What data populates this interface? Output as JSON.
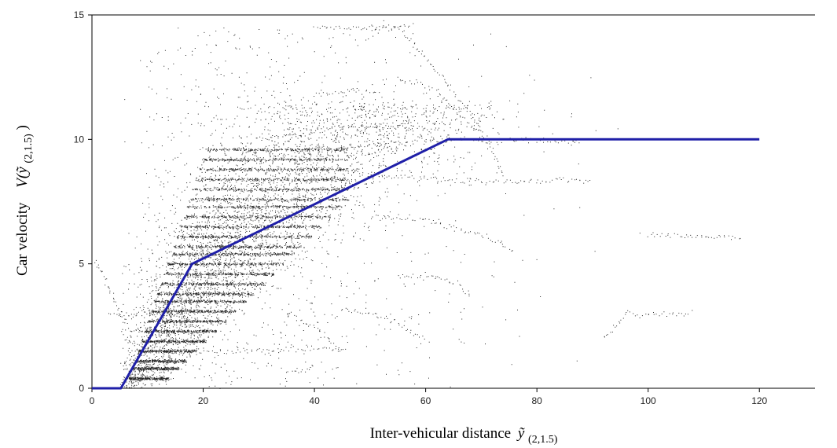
{
  "chart_data": {
    "type": "scatter",
    "xlabel": "Inter-vehicular distance ỹ(2,1.5)",
    "xlabel_text": "Inter-vehicular distance",
    "xlabel_symbol": "ỹ",
    "xlabel_subscript": "(2,1.5)",
    "ylabel": "Car velocity V(ỹ(2,1.5))",
    "ylabel_text": "Car velocity",
    "ylabel_symbol": "V(ỹ",
    "ylabel_subscript": "(2,1.5)",
    "ylabel_close": ")",
    "xlim": [
      0,
      130
    ],
    "ylim": [
      0,
      15
    ],
    "x_ticks": [
      0,
      20,
      40,
      60,
      80,
      100,
      120
    ],
    "y_ticks": [
      0,
      5,
      10,
      15
    ],
    "grid": false,
    "series": [
      {
        "kind": "scatter",
        "color": "#000000",
        "description_points": "dense cloud of measured (distance, velocity) pairs"
      },
      {
        "kind": "line",
        "color": "#1f1fa8",
        "x": [
          0,
          5.2,
          18,
          64,
          120
        ],
        "y": [
          0,
          0,
          5,
          10,
          10
        ]
      }
    ]
  }
}
